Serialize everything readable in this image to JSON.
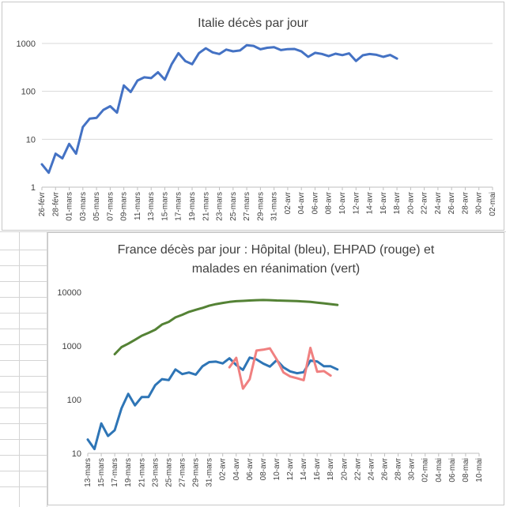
{
  "chart_data": [
    {
      "type": "line",
      "title": "Italie décès par jour",
      "yscale": "log",
      "ylim": [
        1,
        1000
      ],
      "y_ticks": [
        "1",
        "10",
        "100",
        "1000"
      ],
      "grid": true,
      "x_tick_labels": [
        "26-févr",
        "28-févr",
        "01-mars",
        "03-mars",
        "05-mars",
        "07-mars",
        "09-mars",
        "11-mars",
        "13-mars",
        "15-mars",
        "17-mars",
        "19-mars",
        "21-mars",
        "23-mars",
        "25-mars",
        "27-mars",
        "29-mars",
        "31-mars",
        "02-avr",
        "04-avr",
        "06-avr",
        "08-avr",
        "10-avr",
        "12-avr",
        "14-avr",
        "16-avr",
        "18-avr",
        "20-avr",
        "22-avr",
        "24-avr",
        "26-avr",
        "28-avr",
        "30-avr",
        "02-mai"
      ],
      "series": [
        {
          "color": "#4472c4",
          "values": [
            3,
            2,
            5,
            4,
            8,
            5,
            18,
            27,
            28,
            41,
            49,
            36,
            133,
            97,
            168,
            196,
            189,
            250,
            175,
            368,
            627,
            427,
            368,
            627,
            793,
            651,
            601,
            743,
            683,
            712,
            919,
            889,
            756,
            812,
            837,
            727,
            760,
            766,
            681,
            525,
            636,
            604,
            542,
            610,
            570,
            619,
            431,
            566,
            602,
            578,
            525,
            575,
            482
          ]
        }
      ]
    },
    {
      "type": "line",
      "title_line1": "France décès par jour : Hôpital  (bleu),  EHPAD (rouge) et",
      "title_line2": "malades en réanimation (vert)",
      "yscale": "log",
      "ylim": [
        10,
        10000
      ],
      "y_ticks": [
        "10",
        "100",
        "1000",
        "10000"
      ],
      "grid": false,
      "x_tick_labels": [
        "13-mars",
        "15-mars",
        "17-mars",
        "19-mars",
        "21-mars",
        "23-mars",
        "25-mars",
        "27-mars",
        "29-mars",
        "31-mars",
        "02-avr",
        "04-avr",
        "06-avr",
        "08-avr",
        "10-avr",
        "12-avr",
        "14-avr",
        "16-avr",
        "18-avr",
        "20-avr",
        "22-avr",
        "24-avr",
        "26-avr",
        "28-avr",
        "30-avr",
        "02-mai",
        "04-mai",
        "06-mai",
        "08-mai",
        "10-mai"
      ],
      "series": [
        {
          "color": "#2e75b6",
          "start_index": 0,
          "values": [
            18,
            12,
            36,
            21,
            27,
            69,
            128,
            78,
            112,
            112,
            186,
            240,
            231,
            365,
            299,
            319,
            292,
            418,
            499,
            509,
            471,
            588,
            441,
            357,
            605,
            560,
            469,
            412,
            544,
            398,
            335,
            310,
            324,
            532,
            514,
            417,
            418,
            364
          ]
        },
        {
          "color": "#f08080",
          "start_index": 21,
          "values": [
            400,
            600,
            160,
            240,
            820,
            850,
            900,
            560,
            320,
            270,
            250,
            230,
            920,
            330,
            340,
            280
          ]
        },
        {
          "color": "#548235",
          "start_index": 4,
          "values": [
            700,
            950,
            1100,
            1300,
            1550,
            1750,
            2000,
            2500,
            2800,
            3400,
            3800,
            4300,
            4700,
            5100,
            5600,
            6000,
            6300,
            6600,
            6800,
            6900,
            7000,
            7100,
            7150,
            7100,
            7000,
            6950,
            6900,
            6850,
            6700,
            6600,
            6400,
            6200,
            6000,
            5800
          ]
        }
      ]
    }
  ]
}
